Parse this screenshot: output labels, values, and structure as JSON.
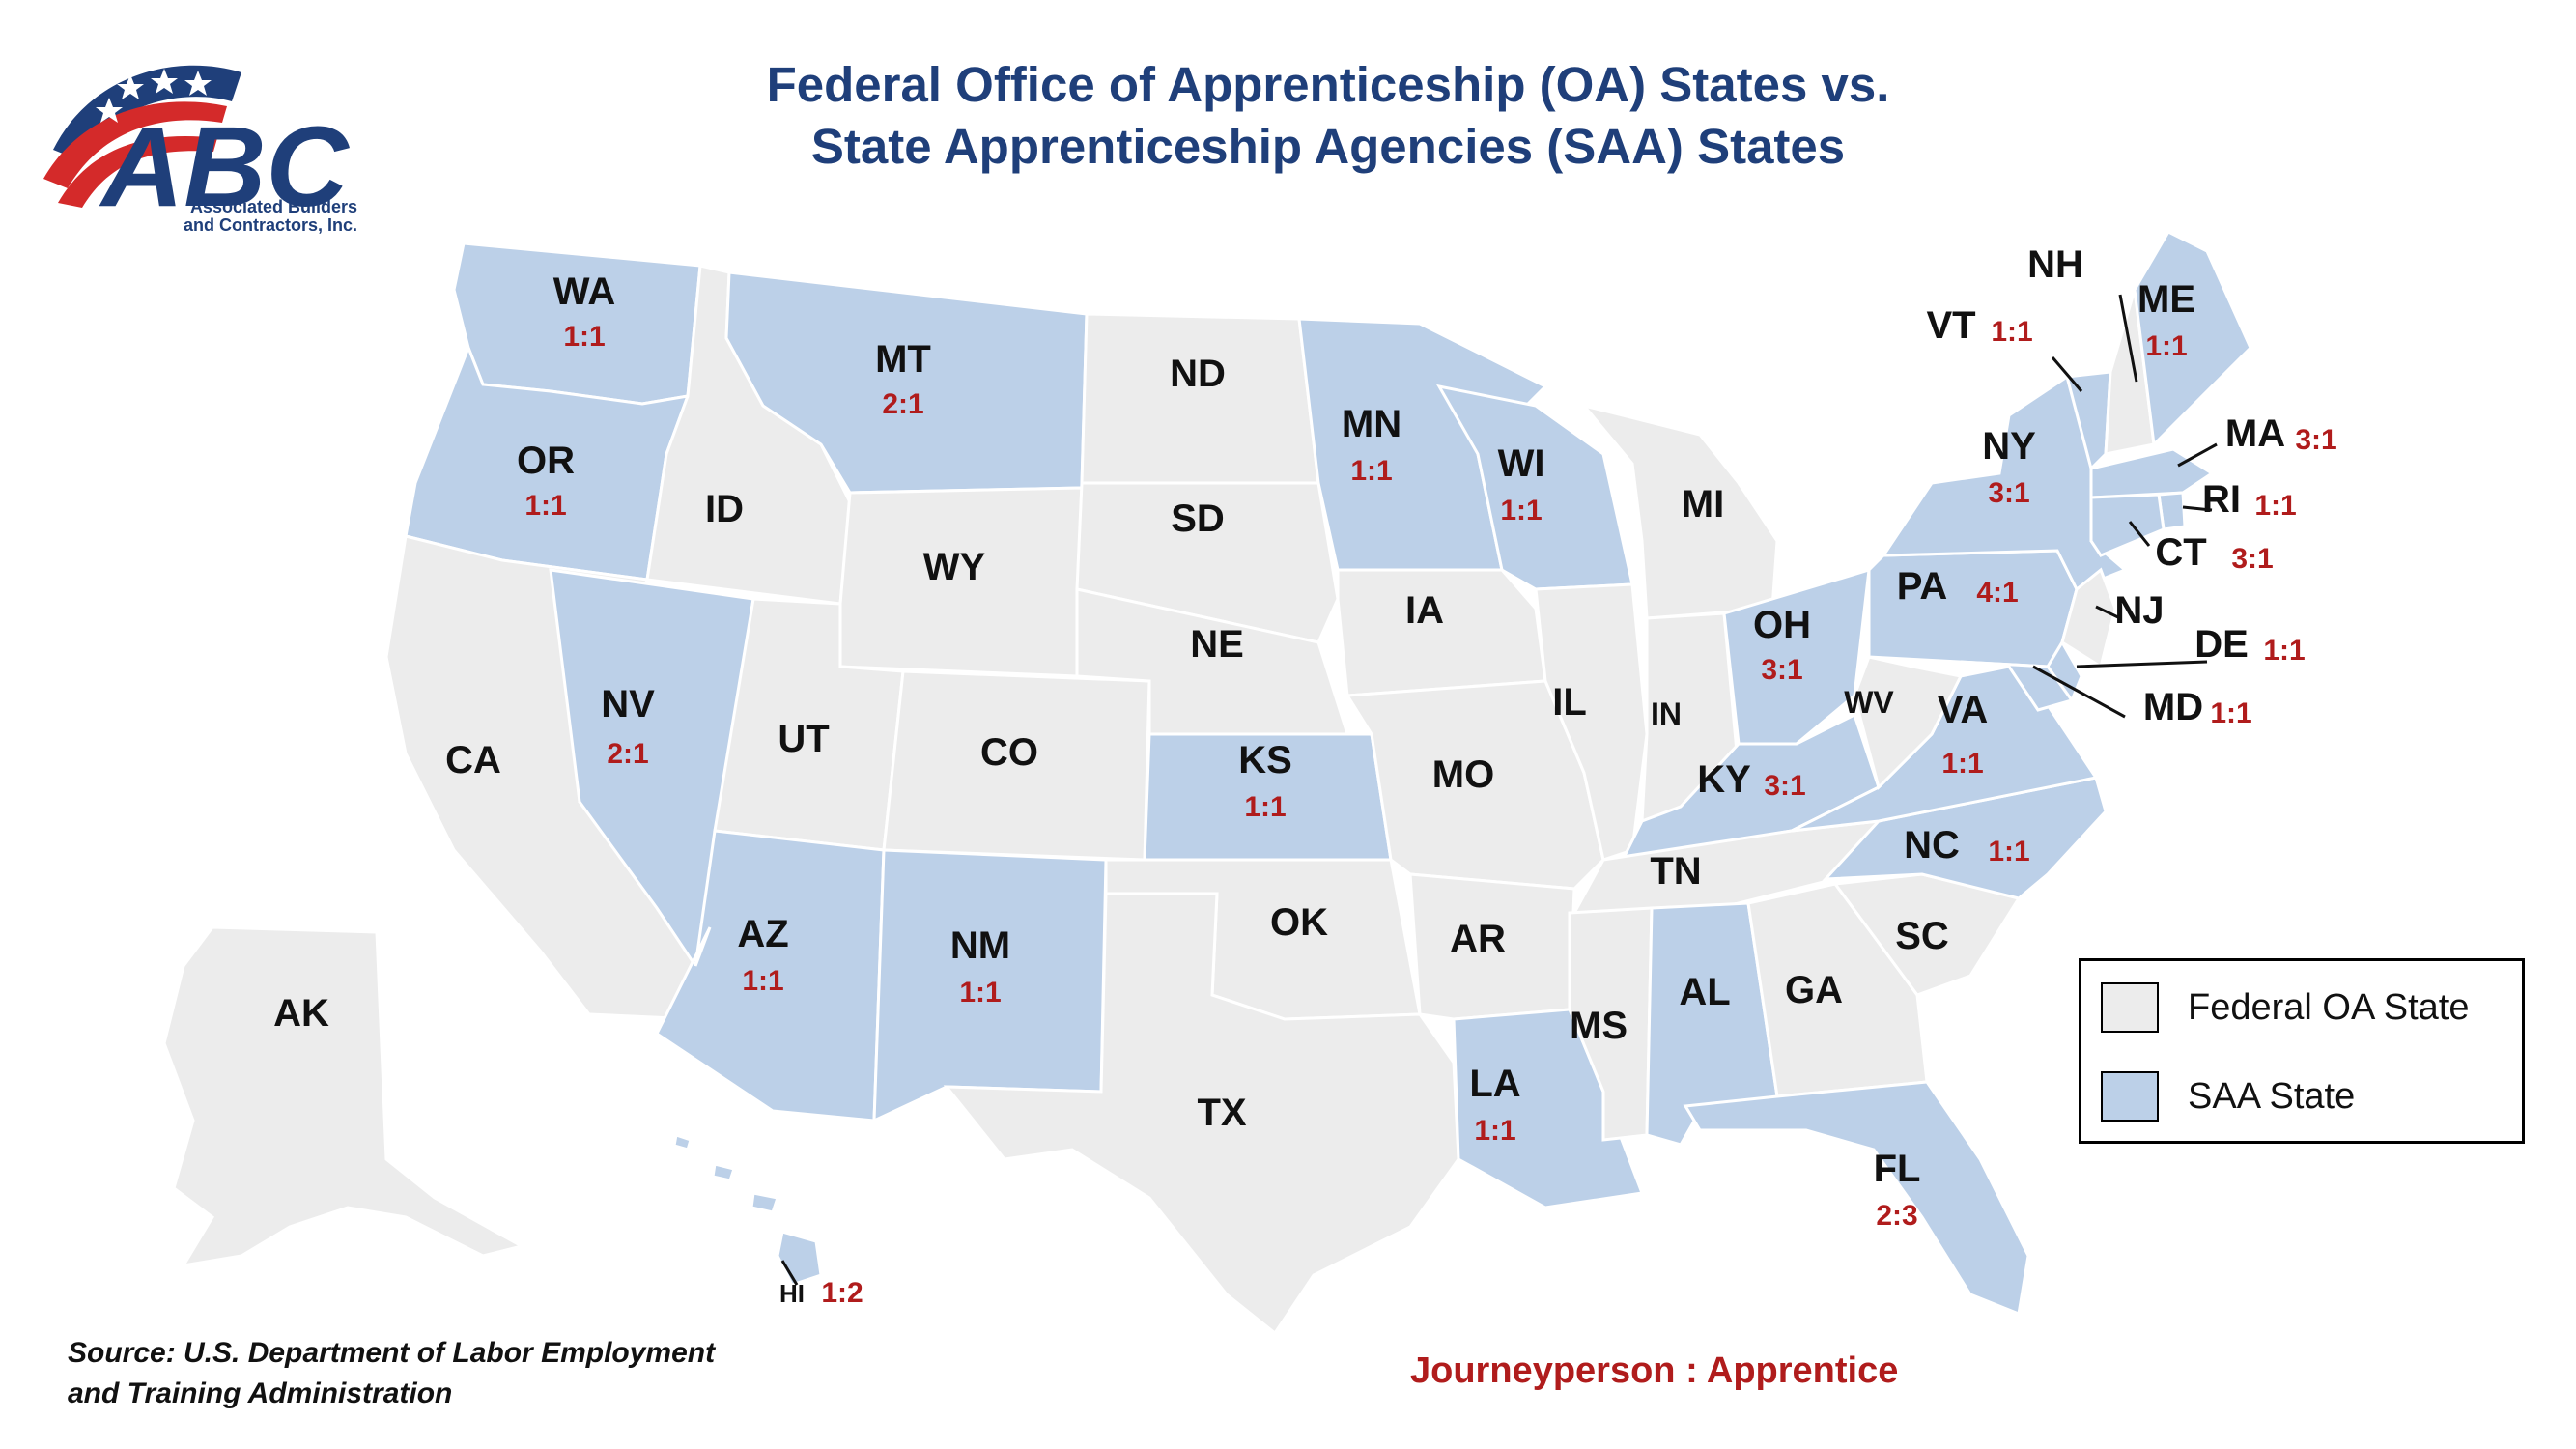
{
  "logo": {
    "name": "ABC",
    "subtitle_line1": "Associated Builders",
    "subtitle_line2": "and Contractors, Inc."
  },
  "title": {
    "line1": "Federal Office of Apprenticeship (OA) States vs.",
    "line2": "State Apprenticeship Agencies (SAA) States"
  },
  "legend": {
    "oa_label": "Federal OA State",
    "saa_label": "SAA State",
    "oa_color": "#ececec",
    "saa_color": "#bcd0e8"
  },
  "source": {
    "line1": "Source: U.S. Department of Labor Employment",
    "line2": "and Training Administration"
  },
  "ratio_note": "Journeyperson : Apprentice",
  "states": {
    "WA": {
      "label": "WA",
      "type": "SAA",
      "ratio": "1:1"
    },
    "OR": {
      "label": "OR",
      "type": "SAA",
      "ratio": "1:1"
    },
    "CA": {
      "label": "CA",
      "type": "OA"
    },
    "NV": {
      "label": "NV",
      "type": "SAA",
      "ratio": "2:1"
    },
    "ID": {
      "label": "ID",
      "type": "OA"
    },
    "MT": {
      "label": "MT",
      "type": "SAA",
      "ratio": "2:1"
    },
    "WY": {
      "label": "WY",
      "type": "OA"
    },
    "UT": {
      "label": "UT",
      "type": "OA"
    },
    "CO": {
      "label": "CO",
      "type": "OA"
    },
    "AZ": {
      "label": "AZ",
      "type": "SAA",
      "ratio": "1:1"
    },
    "NM": {
      "label": "NM",
      "type": "SAA",
      "ratio": "1:1"
    },
    "ND": {
      "label": "ND",
      "type": "OA"
    },
    "SD": {
      "label": "SD",
      "type": "OA"
    },
    "NE": {
      "label": "NE",
      "type": "OA"
    },
    "KS": {
      "label": "KS",
      "type": "SAA",
      "ratio": "1:1"
    },
    "OK": {
      "label": "OK",
      "type": "OA"
    },
    "TX": {
      "label": "TX",
      "type": "OA"
    },
    "MN": {
      "label": "MN",
      "type": "SAA",
      "ratio": "1:1"
    },
    "IA": {
      "label": "IA",
      "type": "OA"
    },
    "MO": {
      "label": "MO",
      "type": "OA"
    },
    "AR": {
      "label": "AR",
      "type": "OA"
    },
    "LA": {
      "label": "LA",
      "type": "SAA",
      "ratio": "1:1"
    },
    "WI": {
      "label": "WI",
      "type": "SAA",
      "ratio": "1:1"
    },
    "IL": {
      "label": "IL",
      "type": "OA"
    },
    "MI": {
      "label": "MI",
      "type": "OA"
    },
    "IN": {
      "label": "IN",
      "type": "OA"
    },
    "OH": {
      "label": "OH",
      "type": "SAA",
      "ratio": "3:1"
    },
    "KY": {
      "label": "KY",
      "type": "SAA",
      "ratio": "3:1"
    },
    "TN": {
      "label": "TN",
      "type": "OA"
    },
    "MS": {
      "label": "MS",
      "type": "OA"
    },
    "AL": {
      "label": "AL",
      "type": "SAA"
    },
    "GA": {
      "label": "GA",
      "type": "OA"
    },
    "FL": {
      "label": "FL",
      "type": "SAA",
      "ratio": "2:3"
    },
    "SC": {
      "label": "SC",
      "type": "OA"
    },
    "NC": {
      "label": "NC",
      "type": "SAA",
      "ratio": "1:1"
    },
    "VA": {
      "label": "VA",
      "type": "SAA",
      "ratio": "1:1"
    },
    "WV": {
      "label": "WV",
      "type": "OA"
    },
    "PA": {
      "label": "PA",
      "type": "SAA",
      "ratio": "4:1"
    },
    "NY": {
      "label": "NY",
      "type": "SAA",
      "ratio": "3:1"
    },
    "VT": {
      "label": "VT",
      "type": "SAA",
      "ratio": "1:1"
    },
    "NH": {
      "label": "NH",
      "type": "OA"
    },
    "ME": {
      "label": "ME",
      "type": "SAA",
      "ratio": "1:1"
    },
    "MA": {
      "label": "MA",
      "type": "SAA",
      "ratio": "3:1"
    },
    "RI": {
      "label": "RI",
      "type": "SAA",
      "ratio": "1:1"
    },
    "CT": {
      "label": "CT",
      "type": "SAA",
      "ratio": "3:1"
    },
    "NJ": {
      "label": "NJ",
      "type": "OA"
    },
    "DE": {
      "label": "DE",
      "type": "SAA",
      "ratio": "1:1"
    },
    "MD": {
      "label": "MD",
      "type": "SAA",
      "ratio": "1:1"
    },
    "AK": {
      "label": "AK",
      "type": "OA"
    },
    "HI": {
      "label": "HI",
      "type": "SAA",
      "ratio": "1:2"
    }
  }
}
